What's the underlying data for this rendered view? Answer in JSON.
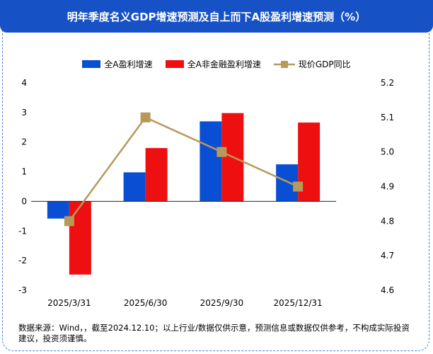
{
  "title": "明年季度名义GDP增速预测及自上而下A股盈利增速预测（%）",
  "note": "数据来源：Wind，，截至2024.12.10；以上行业/数据仅供示意，预测信息或数据仅供参考，不构成实际投资建议，投资须谨慎。",
  "colors": {
    "title_bg": "#1652c6",
    "series1": "#0a4fd3",
    "series2": "#ee1010",
    "series3": "#b8995a"
  },
  "chart_data": {
    "type": "bar",
    "categories": [
      "2025/3/31",
      "2025/6/30",
      "2025/9/30",
      "2025/12/31"
    ],
    "series": [
      {
        "name": "全A盈利增速",
        "type": "bar",
        "axis": "left",
        "values": [
          -0.58,
          0.98,
          2.7,
          1.25
        ]
      },
      {
        "name": "全A非金融盈利增速",
        "type": "bar",
        "axis": "left",
        "values": [
          -2.47,
          1.8,
          2.98,
          2.66
        ]
      },
      {
        "name": "现价GDP同比",
        "type": "line",
        "axis": "right",
        "values": [
          4.8,
          5.1,
          5.0,
          4.9
        ]
      }
    ],
    "ylim": [
      -3,
      4
    ],
    "yticks": [
      "4",
      "3",
      "2",
      "1",
      "0",
      "-1",
      "-2",
      "-3"
    ],
    "y2lim": [
      4.6,
      5.2
    ],
    "y2ticks": [
      "5.2",
      "5.1",
      "5.0",
      "4.9",
      "4.8",
      "4.7",
      "4.6"
    ],
    "grid": false,
    "legend": "top"
  }
}
